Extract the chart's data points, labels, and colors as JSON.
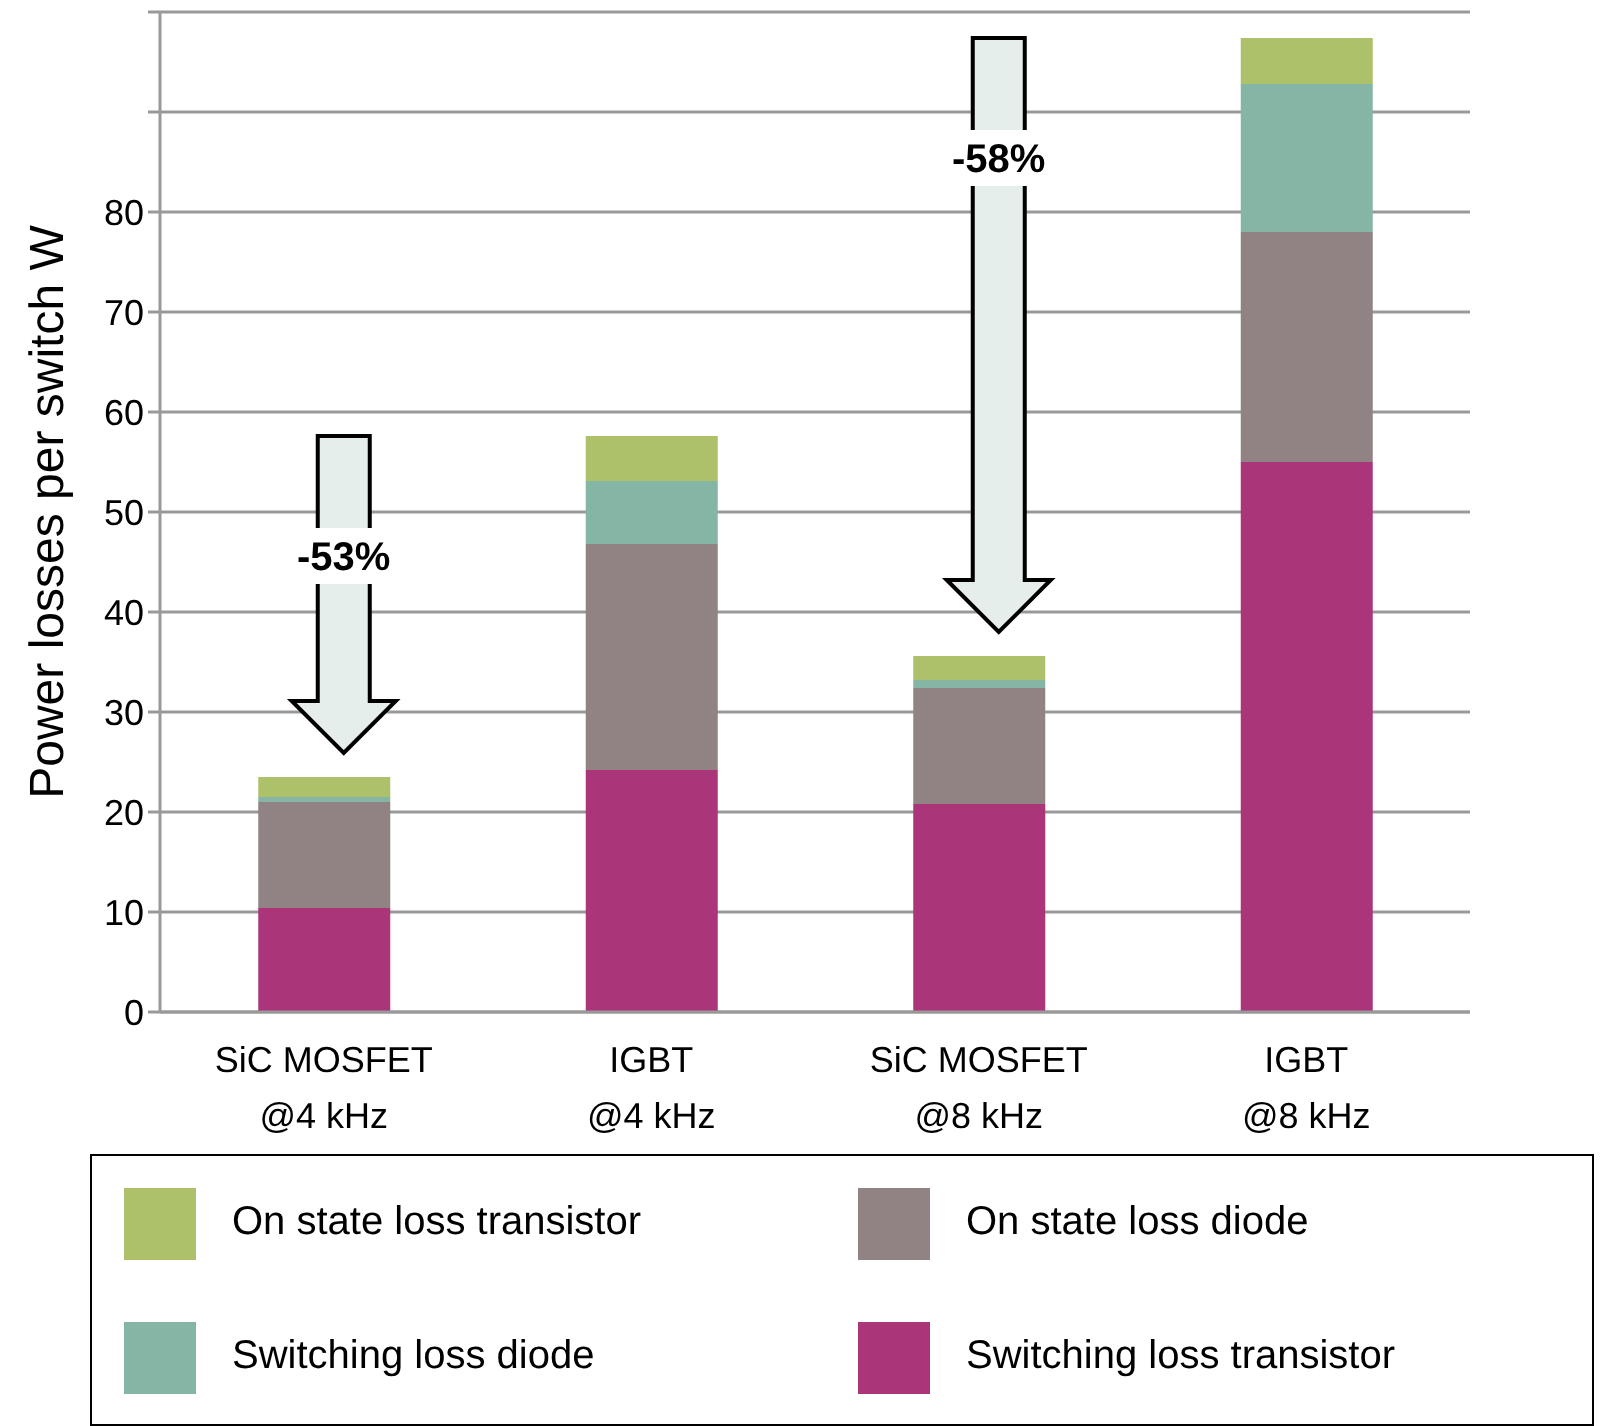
{
  "chart_data": {
    "type": "bar",
    "stacked": true,
    "ylabel": "Power losses per switch W",
    "categories": [
      "SiC MOSFET\n@4 kHz",
      "IGBT\n@4 kHz",
      "SiC MOSFET\n@8 kHz",
      "IGBT\n@8 kHz"
    ],
    "series": [
      {
        "name": "Switching loss transistor",
        "color": "#aa3578",
        "values": [
          10.4,
          24.2,
          20.8,
          55.0
        ]
      },
      {
        "name": "On state loss diode",
        "color": "#918283",
        "values": [
          10.6,
          22.6,
          11.6,
          23.0
        ]
      },
      {
        "name": "Switching loss diode",
        "color": "#84b5a5",
        "values": [
          0.5,
          6.3,
          0.8,
          14.8
        ]
      },
      {
        "name": "On state loss transistor",
        "color": "#adc06a",
        "values": [
          2.0,
          4.5,
          2.4,
          4.6
        ]
      }
    ],
    "ylim": [
      0,
      100
    ],
    "yticks": [
      0,
      10,
      20,
      30,
      40,
      50,
      60,
      70,
      80,
      {
        "value": 90,
        "label": null
      },
      {
        "value": 100,
        "label": null
      }
    ],
    "grid": "y",
    "legend": "bottom",
    "annotations": [
      "-53%",
      "-58%"
    ]
  }
}
